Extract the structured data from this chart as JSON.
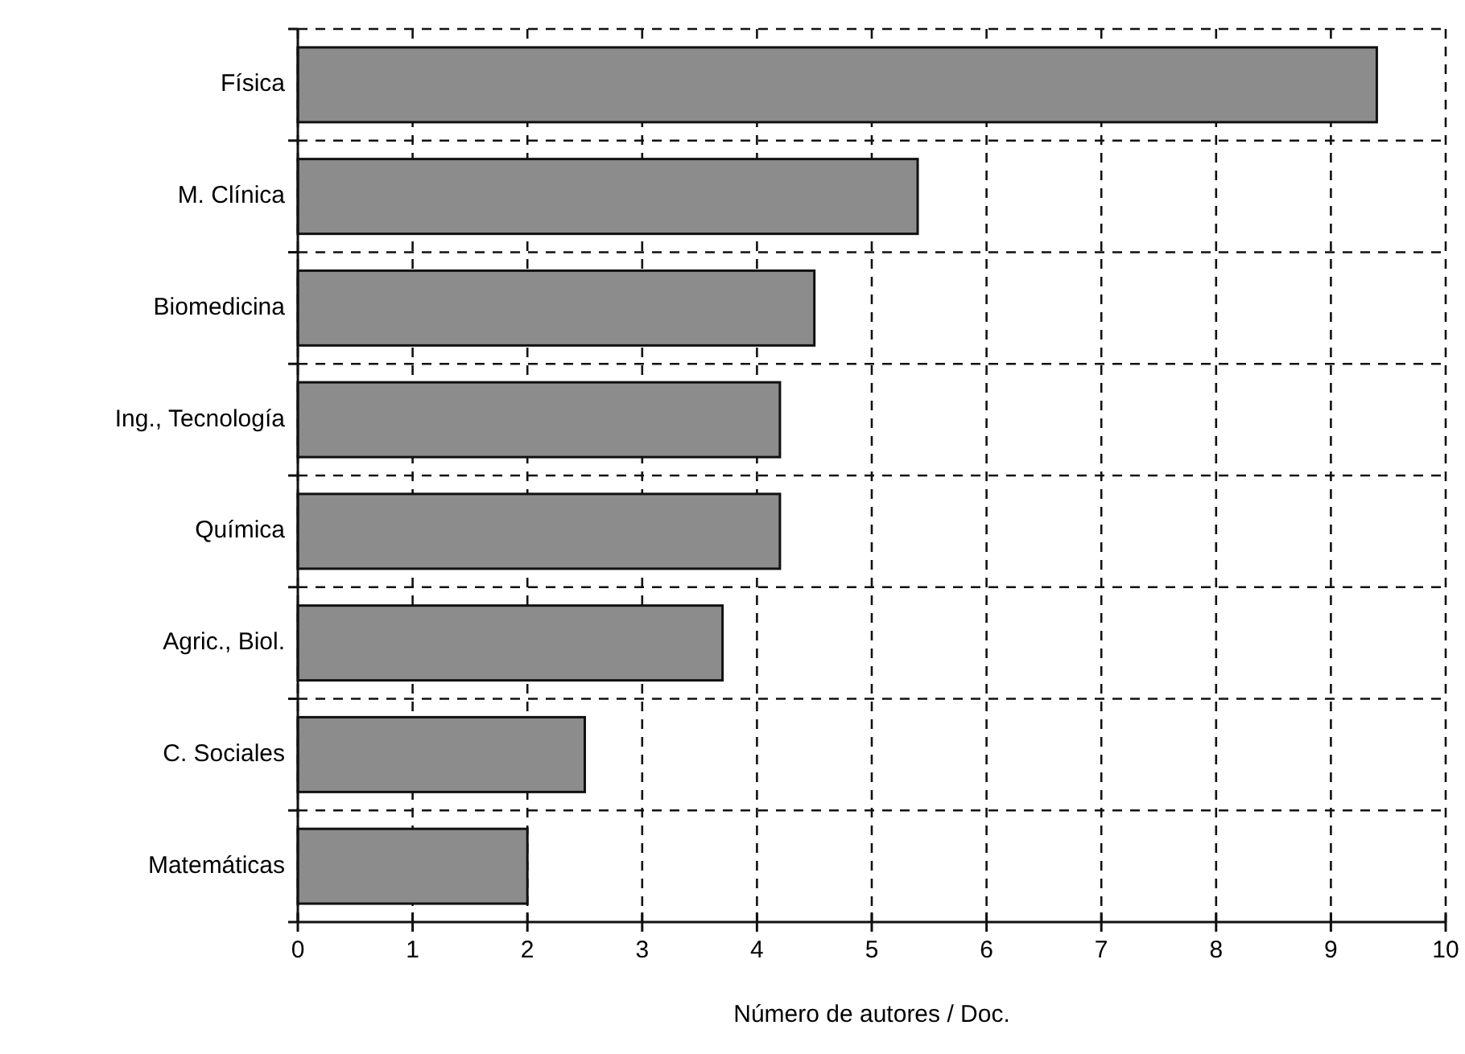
{
  "chart_data": {
    "type": "bar",
    "orientation": "horizontal",
    "xlabel": "Número de autores / Doc.",
    "categories": [
      "Física",
      "M. Clínica",
      "Biomedicina",
      "Ing., Tecnología",
      "Química",
      "Agric., Biol.",
      "C. Sociales",
      "Matemáticas"
    ],
    "values": [
      9.4,
      5.4,
      4.5,
      4.2,
      4.2,
      3.7,
      2.5,
      2.0
    ],
    "color": "#8c8c8c",
    "xlim": [
      0,
      10
    ],
    "xticks": [
      0,
      1,
      2,
      3,
      4,
      5,
      6,
      7,
      8,
      9,
      10
    ],
    "grid": true
  }
}
